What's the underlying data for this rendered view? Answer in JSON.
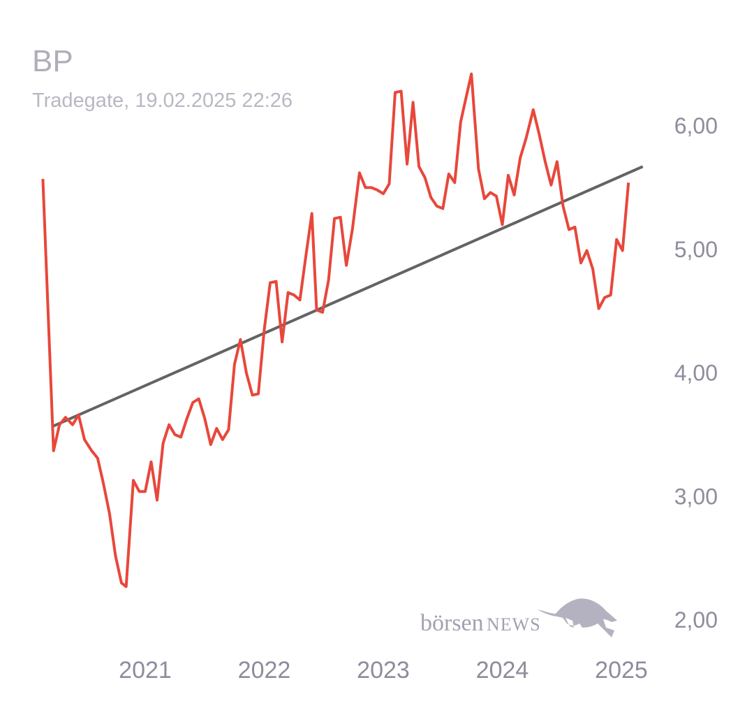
{
  "header": {
    "title": "BP",
    "subtitle": "Tradegate, 19.02.2025 22:26"
  },
  "logo": {
    "text_main": "börsen",
    "text_caps": "NEWS",
    "icon": "bull-icon"
  },
  "colors": {
    "price_line": "#e8473b",
    "trend_line": "#636363",
    "tick_text": "#8e8c9c",
    "title_text": "#b0aebb"
  },
  "chart_data": {
    "type": "line",
    "title": "BP",
    "subtitle": "Tradegate, 19.02.2025 22:26",
    "xlabel": "",
    "ylabel": "",
    "ylim": [
      2.0,
      6.4
    ],
    "xlim": [
      2020.13,
      2025.25
    ],
    "y_ticks": [
      2.0,
      3.0,
      4.0,
      5.0,
      6.0
    ],
    "y_tick_labels": [
      "2,00",
      "3,00",
      "4,00",
      "5,00",
      "6,00"
    ],
    "x_ticks": [
      2021.0,
      2022.0,
      2023.0,
      2024.0,
      2025.0
    ],
    "x_tick_labels": [
      "2021",
      "2022",
      "2023",
      "2024",
      "2025"
    ],
    "grid": false,
    "legend": "none",
    "series": [
      {
        "values": [
          [
            2020.14,
            5.57
          ],
          [
            2020.23,
            3.37
          ],
          [
            2020.28,
            3.58
          ],
          [
            2020.33,
            3.64
          ],
          [
            2020.39,
            3.58
          ],
          [
            2020.44,
            3.66
          ],
          [
            2020.49,
            3.46
          ],
          [
            2020.55,
            3.37
          ],
          [
            2020.6,
            3.31
          ],
          [
            2020.65,
            3.1
          ],
          [
            2020.7,
            2.86
          ],
          [
            2020.75,
            2.52
          ],
          [
            2020.8,
            2.3
          ],
          [
            2020.84,
            2.27
          ],
          [
            2020.9,
            3.13
          ],
          [
            2020.95,
            3.04
          ],
          [
            2021.0,
            3.04
          ],
          [
            2021.05,
            3.28
          ],
          [
            2021.1,
            2.97
          ],
          [
            2021.15,
            3.43
          ],
          [
            2021.2,
            3.58
          ],
          [
            2021.25,
            3.5
          ],
          [
            2021.3,
            3.48
          ],
          [
            2021.35,
            3.63
          ],
          [
            2021.4,
            3.76
          ],
          [
            2021.45,
            3.79
          ],
          [
            2021.5,
            3.63
          ],
          [
            2021.55,
            3.42
          ],
          [
            2021.6,
            3.55
          ],
          [
            2021.65,
            3.46
          ],
          [
            2021.7,
            3.54
          ],
          [
            2021.75,
            4.07
          ],
          [
            2021.8,
            4.27
          ],
          [
            2021.85,
            4.0
          ],
          [
            2021.9,
            3.82
          ],
          [
            2021.95,
            3.83
          ],
          [
            2022.0,
            4.35
          ],
          [
            2022.05,
            4.73
          ],
          [
            2022.1,
            4.74
          ],
          [
            2022.15,
            4.25
          ],
          [
            2022.2,
            4.65
          ],
          [
            2022.25,
            4.63
          ],
          [
            2022.3,
            4.59
          ],
          [
            2022.35,
            4.95
          ],
          [
            2022.4,
            5.29
          ],
          [
            2022.44,
            4.51
          ],
          [
            2022.49,
            4.49
          ],
          [
            2022.54,
            4.75
          ],
          [
            2022.59,
            5.25
          ],
          [
            2022.64,
            5.26
          ],
          [
            2022.69,
            4.87
          ],
          [
            2022.74,
            5.16
          ],
          [
            2022.8,
            5.62
          ],
          [
            2022.85,
            5.5
          ],
          [
            2022.9,
            5.5
          ],
          [
            2022.95,
            5.48
          ],
          [
            2023.0,
            5.45
          ],
          [
            2023.05,
            5.53
          ],
          [
            2023.1,
            6.27
          ],
          [
            2023.15,
            6.28
          ],
          [
            2023.2,
            5.69
          ],
          [
            2023.25,
            6.19
          ],
          [
            2023.3,
            5.67
          ],
          [
            2023.35,
            5.58
          ],
          [
            2023.4,
            5.42
          ],
          [
            2023.45,
            5.35
          ],
          [
            2023.5,
            5.33
          ],
          [
            2023.55,
            5.61
          ],
          [
            2023.6,
            5.54
          ],
          [
            2023.65,
            6.03
          ],
          [
            2023.7,
            6.25
          ],
          [
            2023.74,
            6.42
          ],
          [
            2023.8,
            5.65
          ],
          [
            2023.85,
            5.41
          ],
          [
            2023.9,
            5.46
          ],
          [
            2023.95,
            5.43
          ],
          [
            2024.0,
            5.2
          ],
          [
            2024.05,
            5.6
          ],
          [
            2024.1,
            5.44
          ],
          [
            2024.15,
            5.74
          ],
          [
            2024.2,
            5.9
          ],
          [
            2024.26,
            6.13
          ],
          [
            2024.31,
            5.93
          ],
          [
            2024.36,
            5.71
          ],
          [
            2024.41,
            5.52
          ],
          [
            2024.46,
            5.71
          ],
          [
            2024.51,
            5.35
          ],
          [
            2024.56,
            5.16
          ],
          [
            2024.61,
            5.18
          ],
          [
            2024.66,
            4.89
          ],
          [
            2024.71,
            4.99
          ],
          [
            2024.76,
            4.84
          ],
          [
            2024.81,
            4.52
          ],
          [
            2024.86,
            4.61
          ],
          [
            2024.91,
            4.63
          ],
          [
            2024.96,
            5.08
          ],
          [
            2025.01,
            4.99
          ],
          [
            2025.06,
            5.54
          ]
        ]
      },
      {
        "type": "trendline",
        "values": [
          [
            2020.23,
            3.57
          ],
          [
            2025.18,
            5.67
          ]
        ]
      }
    ]
  }
}
